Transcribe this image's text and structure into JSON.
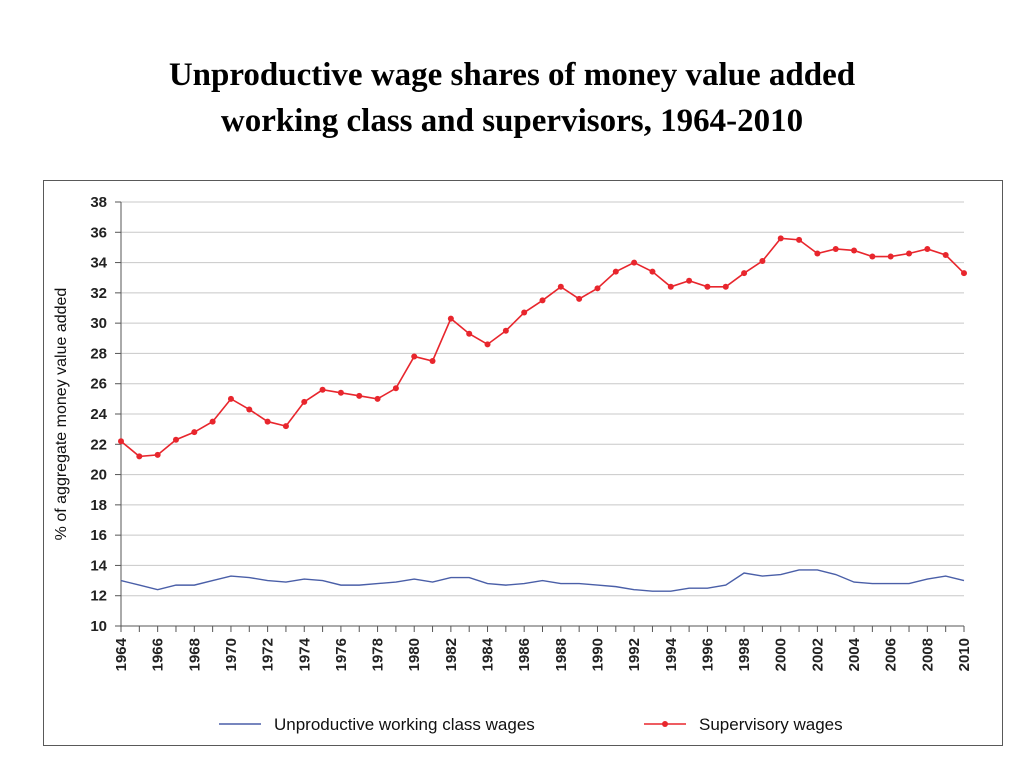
{
  "slide": {
    "title_line1": "Unproductive wage shares of money value added",
    "title_line2": "working class and supervisors,  1964-2010"
  },
  "chart_data": {
    "type": "line",
    "title": "Unproductive wage shares of money value added working class and supervisors,  1964-2010",
    "xlabel": "",
    "ylabel": "% of aggregate money value added",
    "ylim": [
      10,
      38
    ],
    "yticks": [
      10,
      12,
      14,
      16,
      18,
      20,
      22,
      24,
      26,
      28,
      30,
      32,
      34,
      36,
      38
    ],
    "xticks": [
      "1964",
      "1966",
      "1968",
      "1970",
      "1972",
      "1974",
      "1976",
      "1978",
      "1980",
      "1982",
      "1984",
      "1986",
      "1988",
      "1990",
      "1992",
      "1994",
      "1996",
      "1998",
      "2000",
      "2002",
      "2004",
      "2006",
      "2008",
      "2010"
    ],
    "grid": true,
    "legend_position": "bottom",
    "x": [
      1964,
      1965,
      1966,
      1967,
      1968,
      1969,
      1970,
      1971,
      1972,
      1973,
      1974,
      1975,
      1976,
      1977,
      1978,
      1979,
      1980,
      1981,
      1982,
      1983,
      1984,
      1985,
      1986,
      1987,
      1988,
      1989,
      1990,
      1991,
      1992,
      1993,
      1994,
      1995,
      1996,
      1997,
      1998,
      1999,
      2000,
      2001,
      2002,
      2003,
      2004,
      2005,
      2006,
      2007,
      2008,
      2009,
      2010
    ],
    "series": [
      {
        "name": "Unproductive working class wages",
        "color": "#4a5fa8",
        "markers": false,
        "values": [
          13.0,
          12.7,
          12.4,
          12.7,
          12.7,
          13.0,
          13.3,
          13.2,
          13.0,
          12.9,
          13.1,
          13.0,
          12.7,
          12.7,
          12.8,
          12.9,
          13.1,
          12.9,
          13.2,
          13.2,
          12.8,
          12.7,
          12.8,
          13.0,
          12.8,
          12.8,
          12.7,
          12.6,
          12.4,
          12.3,
          12.3,
          12.5,
          12.5,
          12.7,
          13.5,
          13.3,
          13.4,
          13.7,
          13.7,
          13.4,
          12.9,
          12.8,
          12.8,
          12.8,
          13.1,
          13.3,
          13.0
        ]
      },
      {
        "name": "Supervisory wages",
        "color": "#e8262d",
        "markers": true,
        "values": [
          22.2,
          21.2,
          21.3,
          22.3,
          22.8,
          23.5,
          25.0,
          24.3,
          23.5,
          23.2,
          24.8,
          25.6,
          25.4,
          25.2,
          25.0,
          25.7,
          27.8,
          27.5,
          30.3,
          29.3,
          28.6,
          29.5,
          30.7,
          31.5,
          32.4,
          31.6,
          32.3,
          33.4,
          34.0,
          33.4,
          32.4,
          32.8,
          32.4,
          32.4,
          33.3,
          34.1,
          35.6,
          35.5,
          34.6,
          34.9,
          34.8,
          34.4,
          34.4,
          34.6,
          34.9,
          34.5,
          33.3
        ]
      }
    ]
  }
}
